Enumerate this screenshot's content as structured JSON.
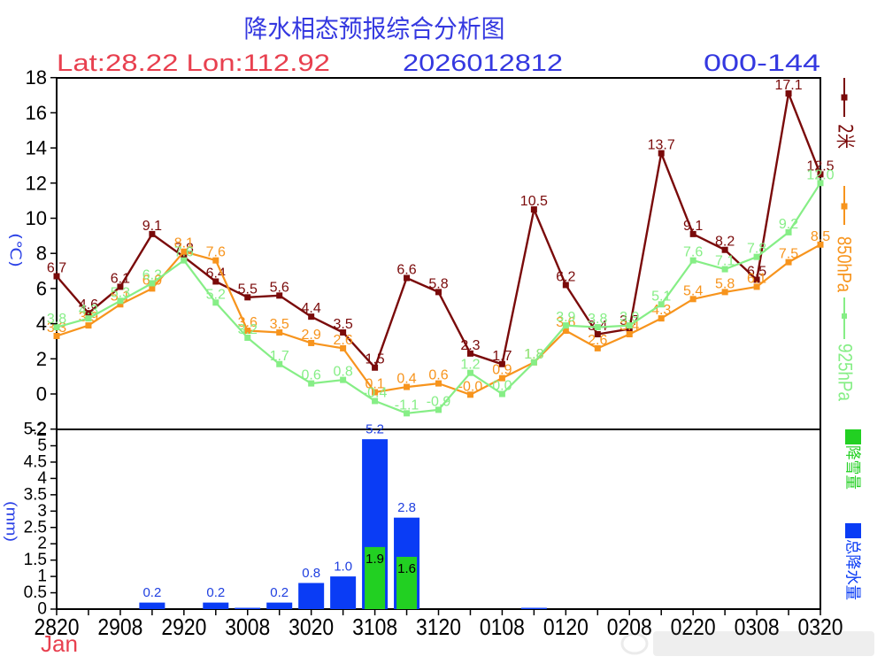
{
  "header": {
    "title": "降水相态预报综合分析图",
    "location": "Lat:28.22 Lon:112.92",
    "init_time": "2026012812",
    "forecast_range": "000-144"
  },
  "colors": {
    "title": "#3438e0",
    "location": "#e8404f",
    "axis_title": "#2a40e6",
    "axis": "#000000",
    "bar_label": "#1f3fe0",
    "snow_label": "#000000",
    "month_label": "#e8404f"
  },
  "chart_data": [
    {
      "type": "line",
      "title": "降水相态预报综合分析图",
      "xlabel": "Jan",
      "ylabel": "(℃)",
      "ylim": [
        -2,
        18
      ],
      "yticks": [
        -2,
        0,
        2,
        4,
        6,
        8,
        10,
        12,
        14,
        16,
        18
      ],
      "grid": false,
      "legend_position": "right",
      "x": [
        "2820",
        "2902",
        "2908",
        "2914",
        "2920",
        "3002",
        "3008",
        "3014",
        "3020",
        "3102",
        "3108",
        "3114",
        "3120",
        "0102",
        "0108",
        "0114",
        "0120",
        "0202",
        "0208",
        "0214",
        "0220",
        "0302",
        "0308",
        "0314",
        "0320"
      ],
      "x_tick_labels": [
        "2820",
        "2908",
        "2920",
        "3008",
        "3020",
        "3108",
        "3120",
        "0108",
        "0120",
        "0208",
        "0220",
        "0308",
        "0320"
      ],
      "series": [
        {
          "name": "2米",
          "color": "#7a0a0a",
          "values": [
            6.7,
            4.6,
            6.1,
            9.1,
            7.8,
            6.4,
            5.5,
            5.6,
            4.4,
            3.5,
            1.5,
            6.6,
            5.8,
            2.3,
            1.7,
            10.5,
            6.2,
            3.4,
            3.7,
            13.7,
            9.1,
            8.2,
            6.5,
            17.1,
            12.5
          ]
        },
        {
          "name": "850hPa",
          "color": "#f7941d",
          "values": [
            3.3,
            3.9,
            5.1,
            6.0,
            8.1,
            7.6,
            3.6,
            3.5,
            2.9,
            2.6,
            0.1,
            0.4,
            0.6,
            -0.04,
            0.9,
            1.8,
            3.6,
            2.6,
            3.4,
            4.3,
            5.4,
            5.8,
            6.1,
            7.5,
            8.5
          ]
        },
        {
          "name": "925hPa",
          "color": "#86ee86",
          "values": [
            3.8,
            4.3,
            5.3,
            6.3,
            7.6,
            5.2,
            3.2,
            1.7,
            0.6,
            0.8,
            -0.4,
            -1.1,
            -0.9,
            1.2,
            0.0,
            1.8,
            3.9,
            3.8,
            3.9,
            5.1,
            7.6,
            7.1,
            7.8,
            9.2,
            12.0
          ]
        }
      ]
    },
    {
      "type": "bar",
      "xlabel": "Jan",
      "ylabel": "(mm)",
      "ylim": [
        0,
        5.5
      ],
      "yticks": [
        0,
        0.5,
        1,
        1.5,
        2,
        2.5,
        3,
        3.5,
        4,
        4.5,
        5
      ],
      "ymax_label": "5.2",
      "grid": false,
      "legend_position": "right",
      "x": [
        "2820",
        "2902",
        "2908",
        "2914",
        "2920",
        "3002",
        "3008",
        "3014",
        "3020",
        "3102",
        "3108",
        "3114",
        "3120",
        "0102",
        "0108",
        "0114",
        "0120",
        "0202",
        "0208",
        "0214",
        "0220",
        "0302",
        "0308",
        "0314",
        "0320"
      ],
      "series": [
        {
          "name": "降雪量",
          "color": "#22d022",
          "values": [
            0,
            0,
            0,
            0,
            0,
            0,
            0,
            0,
            0,
            0,
            1.9,
            1.6,
            0,
            0,
            0,
            0,
            0,
            0,
            0,
            0,
            0,
            0,
            0,
            0,
            0
          ]
        },
        {
          "name": "总降水量",
          "color": "#0a3cf5",
          "values": [
            0,
            0,
            0,
            0.2,
            0,
            0.2,
            0.04,
            0.2,
            0.8,
            1.0,
            5.2,
            2.8,
            0,
            0,
            0,
            0.04,
            0,
            0,
            0,
            0,
            0,
            0,
            0,
            0,
            0
          ]
        }
      ]
    }
  ]
}
